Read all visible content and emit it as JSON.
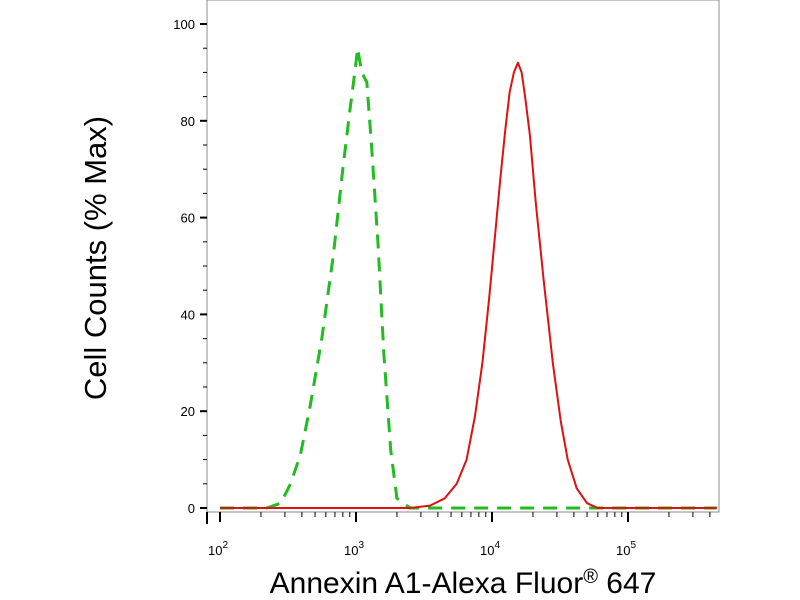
{
  "chart_data": {
    "type": "line",
    "xlabel": "Annexin A1-Alexa Fluor",
    "xlabel_super": "®",
    "xlabel_suffix": " 647",
    "ylabel": "Cell Counts (% Max)",
    "x_scale": "log",
    "xlim": [
      100,
      450000
    ],
    "ylim": [
      0,
      100
    ],
    "x_ticks": [
      {
        "value": 100,
        "base": "10",
        "exp": "2"
      },
      {
        "value": 1000,
        "base": "10",
        "exp": "3"
      },
      {
        "value": 10000,
        "base": "10",
        "exp": "4"
      },
      {
        "value": 100000,
        "base": "10",
        "exp": "5"
      }
    ],
    "y_ticks": [
      0,
      20,
      40,
      60,
      80,
      100
    ],
    "grid": false,
    "legend": "none",
    "series": [
      {
        "color": "#22bb22",
        "style": "dashed",
        "points": [
          [
            100,
            0
          ],
          [
            220,
            0
          ],
          [
            280,
            1
          ],
          [
            330,
            5
          ],
          [
            390,
            11
          ],
          [
            460,
            21
          ],
          [
            560,
            35
          ],
          [
            680,
            52
          ],
          [
            800,
            70
          ],
          [
            900,
            82
          ],
          [
            980,
            90
          ],
          [
            1030,
            95
          ],
          [
            1100,
            90
          ],
          [
            1200,
            88
          ],
          [
            1300,
            75
          ],
          [
            1450,
            55
          ],
          [
            1600,
            32
          ],
          [
            1800,
            12
          ],
          [
            2000,
            2
          ],
          [
            2500,
            0
          ],
          [
            450000,
            0
          ]
        ]
      },
      {
        "color": "#dd1111",
        "style": "solid",
        "points": [
          [
            100,
            0
          ],
          [
            2500,
            0
          ],
          [
            3500,
            0.5
          ],
          [
            4500,
            2
          ],
          [
            5500,
            5
          ],
          [
            6500,
            10
          ],
          [
            7500,
            19
          ],
          [
            8500,
            30
          ],
          [
            9500,
            43
          ],
          [
            10500,
            56
          ],
          [
            11500,
            68
          ],
          [
            12500,
            78
          ],
          [
            13500,
            86
          ],
          [
            14500,
            90
          ],
          [
            15500,
            92
          ],
          [
            16500,
            90
          ],
          [
            17500,
            85
          ],
          [
            19000,
            77
          ],
          [
            21000,
            63
          ],
          [
            24000,
            47
          ],
          [
            28000,
            30
          ],
          [
            32000,
            18
          ],
          [
            36000,
            10
          ],
          [
            42000,
            4
          ],
          [
            50000,
            1
          ],
          [
            60000,
            0
          ],
          [
            450000,
            0
          ]
        ]
      }
    ]
  }
}
